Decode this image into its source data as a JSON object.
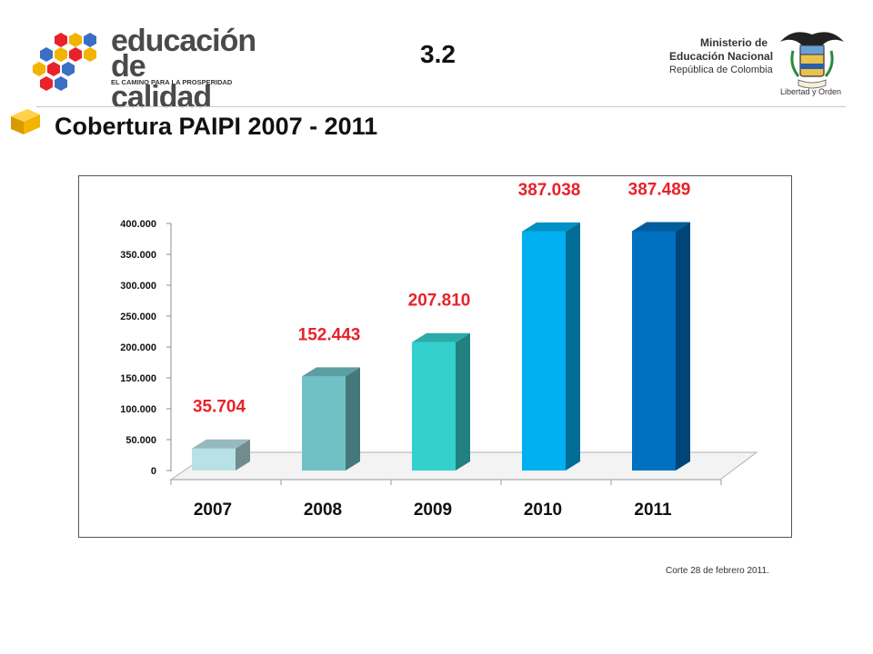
{
  "header": {
    "logo": {
      "line1": "educación",
      "line2": "de calidad",
      "tagline": "EL CAMINO PARA LA PROSPERIDAD"
    },
    "slide_number": "3.2",
    "ministry": {
      "line1": "Ministerio de",
      "line2": "Educación Nacional",
      "line3": "República de Colombia",
      "motto": "Libertad y Orden"
    }
  },
  "title": "Cobertura PAIPI 2007 - 2011",
  "footnote": "Corte  28 de  febrero 2011.",
  "colors": {
    "title_icon": "#f2b400",
    "data_label": "#e8222a",
    "logo_cubes": [
      "#e8222a",
      "#f2b400",
      "#3a6fc4"
    ]
  },
  "chart_data": {
    "type": "bar",
    "style": "3d-columns",
    "categories": [
      "2007",
      "2008",
      "2009",
      "2010",
      "2011"
    ],
    "values": [
      35704,
      152443,
      207810,
      387038,
      387489
    ],
    "data_labels": [
      "35.704",
      "152.443",
      "207.810",
      "387.038",
      "387.489"
    ],
    "bar_colors": [
      "#b7e1e6",
      "#70c1c5",
      "#33d0ce",
      "#00b0f0",
      "#0070c0"
    ],
    "ylim": [
      0,
      400000
    ],
    "yticks": [
      0,
      50000,
      100000,
      150000,
      200000,
      250000,
      300000,
      350000,
      400000
    ],
    "ytick_labels": [
      "0",
      "50.000",
      "100.000",
      "150.000",
      "200.000",
      "250.000",
      "300.000",
      "350.000",
      "400.000"
    ],
    "title": "",
    "xlabel": "",
    "ylabel": "",
    "legend": false,
    "grid": false
  }
}
